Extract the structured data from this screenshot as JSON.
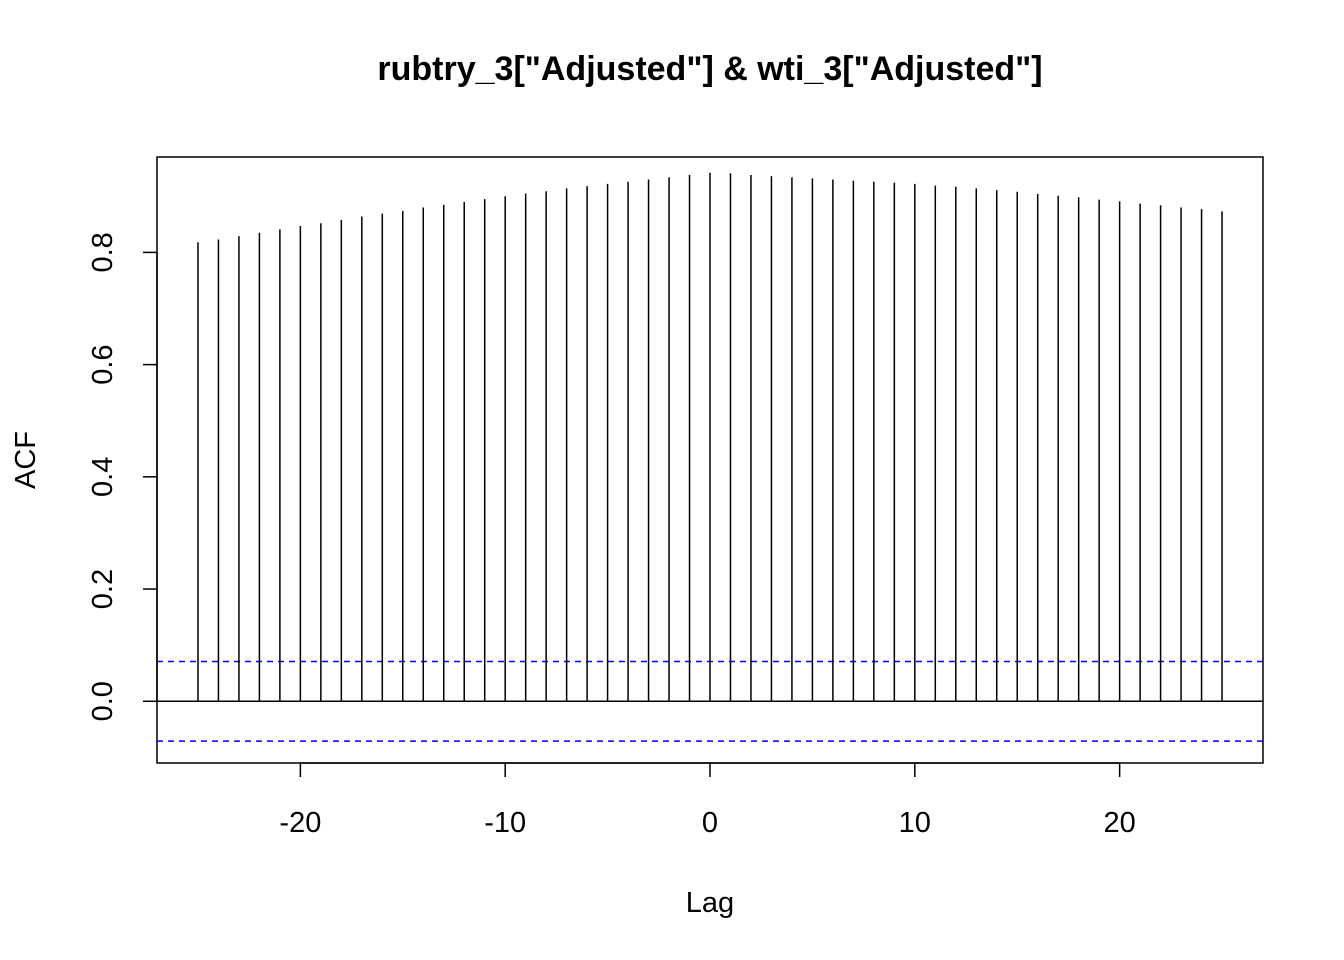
{
  "chart_data": {
    "type": "bar",
    "title": "rubtry_3[\"Adjusted\"] & wti_3[\"Adjusted\"]",
    "xlabel": "Lag",
    "ylabel": "ACF",
    "xlim": [
      -27,
      27
    ],
    "ylim": [
      -0.11,
      0.97
    ],
    "x_ticks": [
      -20,
      -10,
      0,
      10,
      20
    ],
    "x_tick_labels": [
      "-20",
      "-10",
      "0",
      "10",
      "20"
    ],
    "y_ticks": [
      0.0,
      0.2,
      0.4,
      0.6,
      0.8
    ],
    "y_tick_labels": [
      "0.0",
      "0.2",
      "0.4",
      "0.6",
      "0.8"
    ],
    "lags": [
      -25,
      -24,
      -23,
      -22,
      -21,
      -20,
      -19,
      -18,
      -17,
      -16,
      -15,
      -14,
      -13,
      -12,
      -11,
      -10,
      -9,
      -8,
      -7,
      -6,
      -5,
      -4,
      -3,
      -2,
      -1,
      0,
      1,
      2,
      3,
      4,
      5,
      6,
      7,
      8,
      9,
      10,
      11,
      12,
      13,
      14,
      15,
      16,
      17,
      18,
      19,
      20,
      21,
      22,
      23,
      24,
      25
    ],
    "values": [
      0.818,
      0.823,
      0.829,
      0.835,
      0.841,
      0.847,
      0.852,
      0.858,
      0.864,
      0.869,
      0.874,
      0.88,
      0.885,
      0.89,
      0.895,
      0.9,
      0.905,
      0.909,
      0.914,
      0.918,
      0.922,
      0.926,
      0.93,
      0.934,
      0.938,
      0.942,
      0.941,
      0.938,
      0.936,
      0.934,
      0.932,
      0.93,
      0.928,
      0.926,
      0.924,
      0.922,
      0.919,
      0.917,
      0.914,
      0.911,
      0.908,
      0.904,
      0.901,
      0.898,
      0.894,
      0.891,
      0.887,
      0.884,
      0.88,
      0.877,
      0.873
    ],
    "confidence_bound": 0.071,
    "series_color": "#000000",
    "bound_color": "#0000ff",
    "grid": false
  }
}
